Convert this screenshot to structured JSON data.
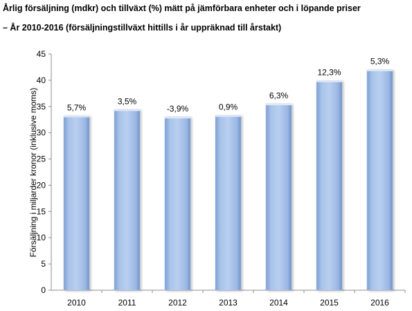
{
  "title_line1": "Årlig försäljning (mdkr) och tillväxt (%) mätt på jämförbara enheter och i löpande priser",
  "title_line2": "– År 2010-2016 (försäljningstillväxt hittills i år uppräknad till årstakt)",
  "colors": {
    "bar_light": "#c5d6f0",
    "bar_main": "#9ab8e4",
    "bar_dark": "#6f92c8",
    "axis": "#8c8c8c"
  },
  "chart_data": {
    "type": "bar",
    "title": "Årlig försäljning (mdkr) och tillväxt (%) mätt på jämförbara enheter och i löpande priser",
    "subtitle": "– År 2010-2016 (försäljningstillväxt hittills i år uppräknad till årstakt)",
    "xlabel": "",
    "ylabel": "Försäljning i miljarder kronor (inklusive moms)",
    "ylim": [
      0,
      45
    ],
    "yticks": [
      "0",
      "5",
      "10",
      "15",
      "20",
      "25",
      "30",
      "35",
      "40",
      "45"
    ],
    "categories": [
      "2010",
      "2011",
      "2012",
      "2013",
      "2014",
      "2015",
      "2016"
    ],
    "values": [
      33.2,
      34.4,
      33.0,
      33.3,
      35.5,
      39.9,
      42.0
    ],
    "data_labels": [
      "5,7%",
      "3,5%",
      "-3,9%",
      "0,9%",
      "6,3%",
      "12,3%",
      "5,3%"
    ],
    "grid": false,
    "legend": "none"
  }
}
